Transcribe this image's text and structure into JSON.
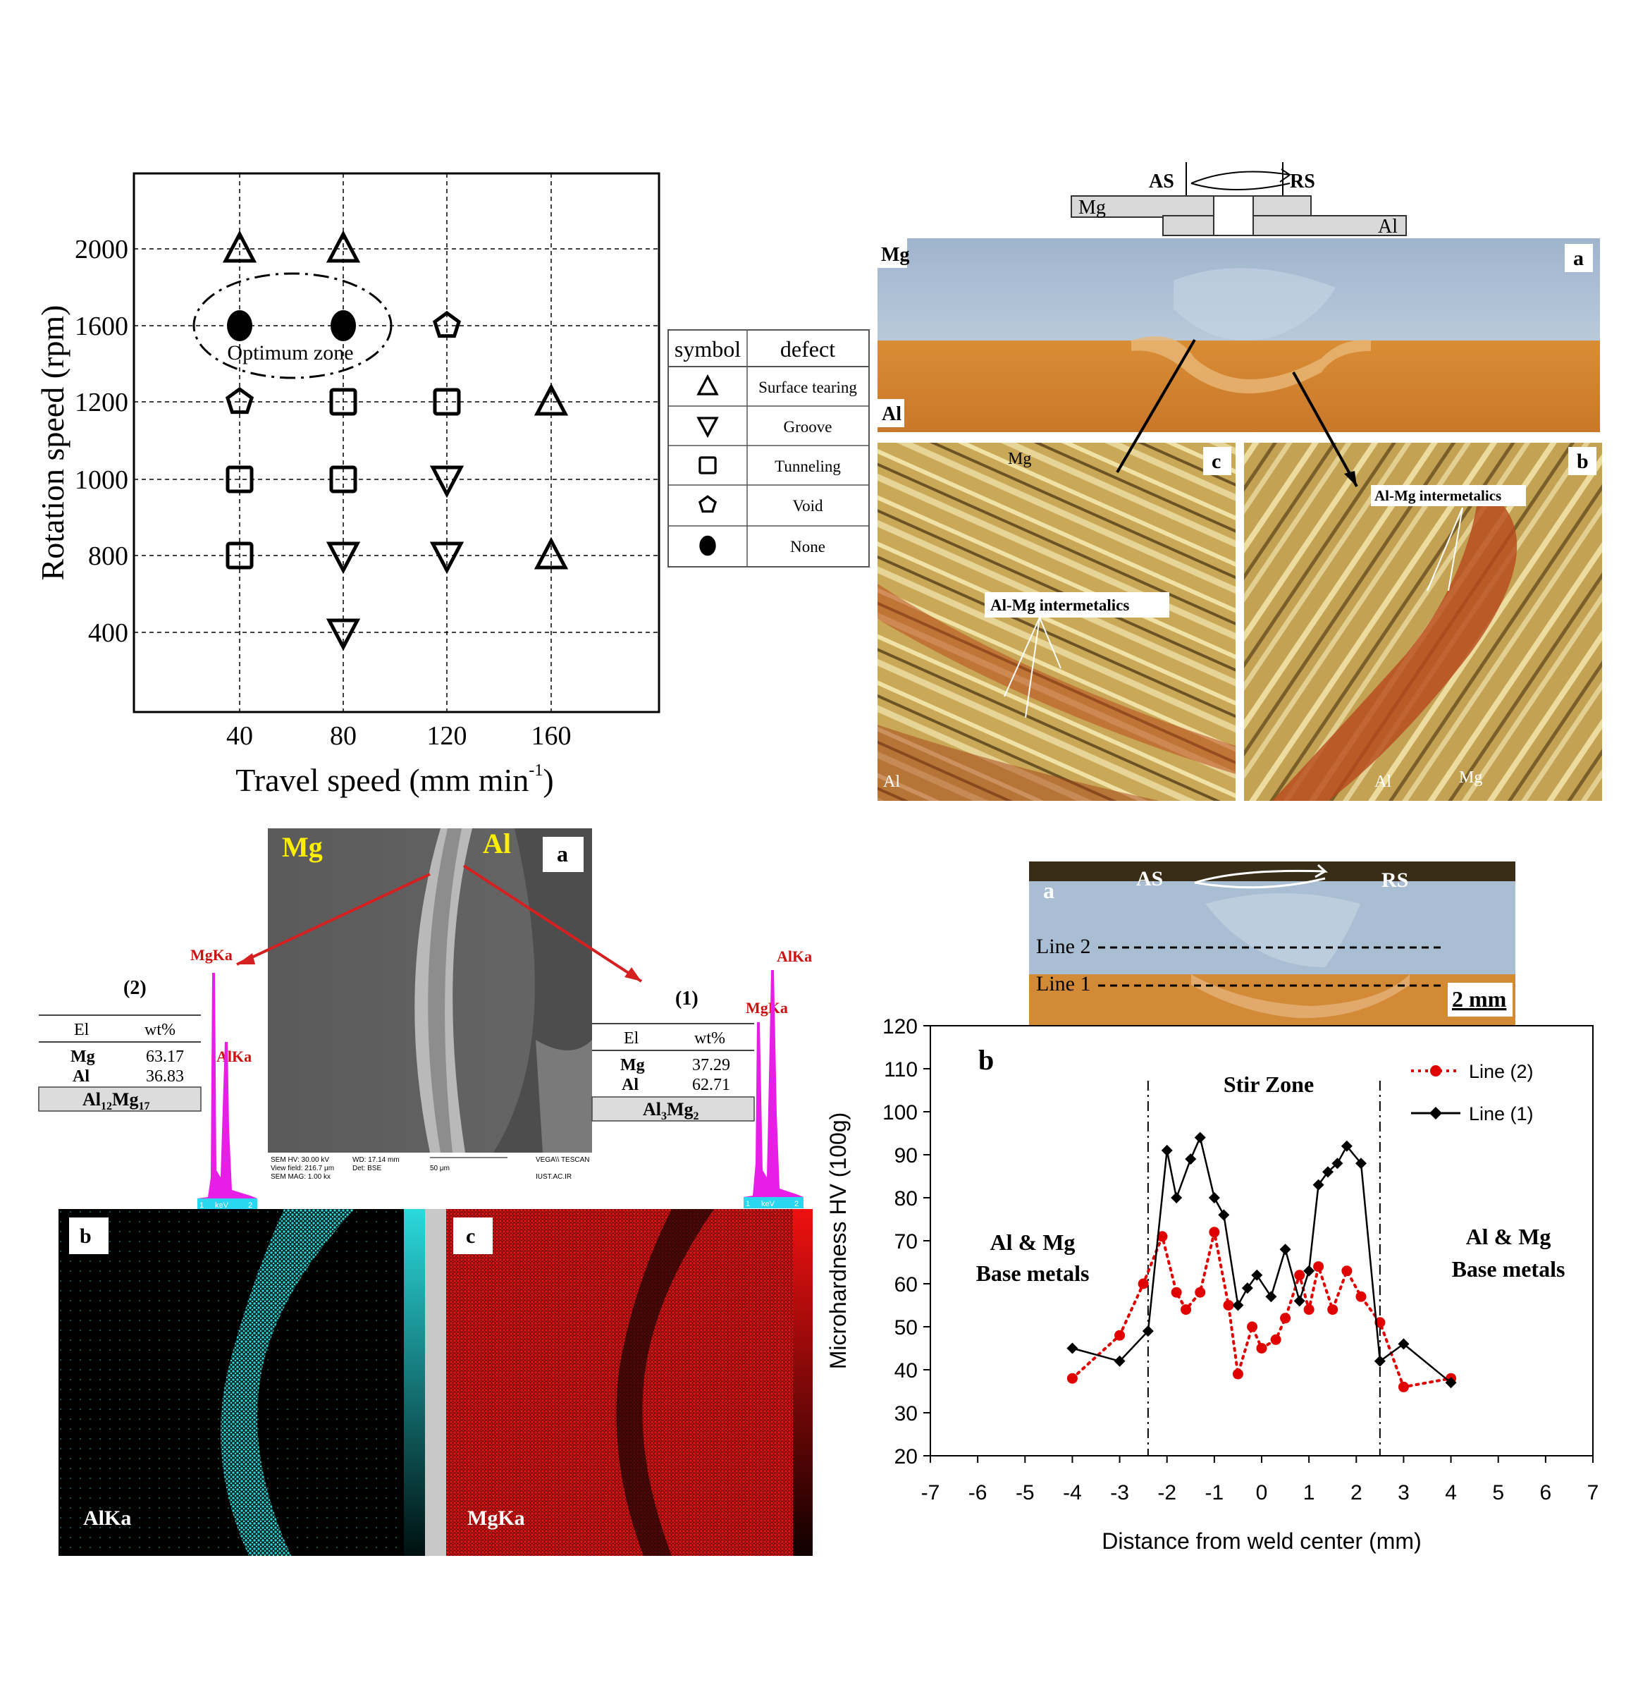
{
  "colors": {
    "mg_cross_section": "#a9bdd3",
    "al_cross_section": "#d38a36",
    "micro_gold": "#c9a857",
    "micro_red": "#b8481b",
    "edx_magenta": "#e61ee6",
    "edx_axis": "#29d7f0",
    "map_cyan": "#2fd7d8",
    "map_red": "#d51212",
    "line2_red": "#e00000",
    "line1_black": "#000000",
    "label_yellow": "#ffee00",
    "arrow_red": "#d42020"
  },
  "process_window": {
    "chart_data": {
      "type": "scatter",
      "title": "",
      "xlabel": "Travel speed (mm min",
      "xlabel_sup": "-1",
      "xlabel_close": ")",
      "ylabel": "Rotation speed (rpm)",
      "x_ticks": [
        "40",
        "80",
        "120",
        "160"
      ],
      "y_ticks": [
        "2000",
        "1600",
        "1200",
        "1000",
        "800",
        "400"
      ],
      "annotation": "Optimum zone",
      "points": [
        {
          "x": 40,
          "y": 2000,
          "defect": "Surface tearing"
        },
        {
          "x": 80,
          "y": 2000,
          "defect": "Surface tearing"
        },
        {
          "x": 40,
          "y": 1600,
          "defect": "None"
        },
        {
          "x": 80,
          "y": 1600,
          "defect": "None"
        },
        {
          "x": 120,
          "y": 1600,
          "defect": "Void"
        },
        {
          "x": 40,
          "y": 1200,
          "defect": "Void"
        },
        {
          "x": 80,
          "y": 1200,
          "defect": "Tunneling"
        },
        {
          "x": 120,
          "y": 1200,
          "defect": "Tunneling"
        },
        {
          "x": 160,
          "y": 1200,
          "defect": "Surface tearing"
        },
        {
          "x": 40,
          "y": 1000,
          "defect": "Tunneling"
        },
        {
          "x": 80,
          "y": 1000,
          "defect": "Tunneling"
        },
        {
          "x": 120,
          "y": 1000,
          "defect": "Groove"
        },
        {
          "x": 40,
          "y": 800,
          "defect": "Tunneling"
        },
        {
          "x": 80,
          "y": 800,
          "defect": "Groove"
        },
        {
          "x": 120,
          "y": 800,
          "defect": "Groove"
        },
        {
          "x": 160,
          "y": 800,
          "defect": "Surface tearing"
        },
        {
          "x": 80,
          "y": 400,
          "defect": "Groove"
        }
      ]
    },
    "legend": {
      "header_symbol": "symbol",
      "header_defect": "defect",
      "rows": [
        {
          "icon": "triangle-up-icon",
          "label": "Surface tearing"
        },
        {
          "icon": "triangle-down-icon",
          "label": "Groove"
        },
        {
          "icon": "square-icon",
          "label": "Tunneling"
        },
        {
          "icon": "pentagon-icon",
          "label": "Void"
        },
        {
          "icon": "filled-circle-icon",
          "label": "None"
        }
      ]
    }
  },
  "macro_micro": {
    "schematic": {
      "as": "AS",
      "rs": "RS",
      "mg": "Mg",
      "al": "Al"
    },
    "panel_a": {
      "letter": "a",
      "mg": "Mg",
      "al": "Al"
    },
    "panel_c": {
      "letter": "c",
      "mg": "Mg",
      "al": "Al",
      "callout": "Al-Mg intermetalics"
    },
    "panel_b": {
      "letter": "b",
      "mg": "Mg",
      "al": "Al",
      "callout": "Al-Mg intermetalics"
    }
  },
  "sem_edx": {
    "sem": {
      "letter": "a",
      "mg": "Mg",
      "al": "Al",
      "meta_left": [
        "SEM HV: 30.00 kV",
        "View field: 216.7 μm",
        "SEM MAG: 1.00 kx"
      ],
      "meta_mid": [
        "WD: 17.14 mm",
        "Det: BSE"
      ],
      "scale": "50 μm",
      "meta_right": [
        "VEGA\\\\ TESCAN",
        "IUST.AC.IR"
      ]
    },
    "point2": {
      "num": "(2)",
      "header": [
        "El",
        "wt%"
      ],
      "rows": [
        [
          "Mg",
          "63.17"
        ],
        [
          "Al",
          "36.83"
        ]
      ],
      "phase": "Al",
      "phase_sub1": "12",
      "phase_mid": "Mg",
      "phase_sub2": "17",
      "peak1": "MgKa",
      "peak2": "AlKa",
      "axis": [
        "1",
        "keV",
        "2"
      ]
    },
    "point1": {
      "num": "(1)",
      "header": [
        "El",
        "wt%"
      ],
      "rows": [
        [
          "Mg",
          "37.29"
        ],
        [
          "Al",
          "62.71"
        ]
      ],
      "phase": "Al",
      "phase_sub1": "3",
      "phase_mid": "Mg",
      "phase_sub2": "2",
      "peak1": "MgKa",
      "peak2": "AlKa",
      "axis": [
        "1",
        "keV",
        "2"
      ]
    },
    "map_b": {
      "letter": "b",
      "label": "AlKa"
    },
    "map_c": {
      "letter": "c",
      "label": "MgKa"
    }
  },
  "hardness": {
    "macro": {
      "letter": "a",
      "as": "AS",
      "rs": "RS",
      "line2": "Line 2",
      "line1": "Line 1",
      "scale": "2 mm"
    },
    "chart_data": {
      "type": "line",
      "title": "",
      "panel_letter": "b",
      "xlabel": "Distance from weld center (mm)",
      "ylabel": "Microhardness HV (100g)",
      "xlim": [
        -7,
        7
      ],
      "ylim": [
        20,
        120
      ],
      "x_ticks": [
        "-7",
        "-6",
        "-5",
        "-4",
        "-3",
        "-2",
        "-1",
        "0",
        "1",
        "2",
        "3",
        "4",
        "5",
        "6",
        "7"
      ],
      "y_ticks": [
        "20",
        "30",
        "40",
        "50",
        "60",
        "70",
        "80",
        "90",
        "100",
        "110",
        "120"
      ],
      "zone_boundaries": [
        -2.4,
        2.5
      ],
      "annotations": {
        "stir_zone": "Stir Zone",
        "left_1": "Al & Mg",
        "left_2": "Base metals",
        "right_1": "Al & Mg",
        "right_2": "Base metals"
      },
      "series": [
        {
          "name": "Line (2)",
          "style": "dotted-circle-red",
          "x": [
            -4,
            -3,
            -2.5,
            -2.1,
            -1.8,
            -1.6,
            -1.3,
            -1.0,
            -0.7,
            -0.5,
            -0.2,
            0,
            0.3,
            0.5,
            0.8,
            1.0,
            1.2,
            1.5,
            1.8,
            2.1,
            2.5,
            3.0,
            4.0
          ],
          "y": [
            38,
            48,
            60,
            71,
            58,
            54,
            58,
            72,
            55,
            39,
            50,
            45,
            47,
            52,
            62,
            54,
            64,
            54,
            63,
            57,
            51,
            36,
            38
          ]
        },
        {
          "name": "Line (1)",
          "style": "solid-diamond-black",
          "x": [
            -4,
            -3,
            -2.4,
            -2.0,
            -1.8,
            -1.5,
            -1.3,
            -1.0,
            -0.8,
            -0.5,
            -0.3,
            -0.1,
            0.2,
            0.5,
            0.8,
            1.0,
            1.2,
            1.4,
            1.6,
            1.8,
            2.1,
            2.5,
            3.0,
            4.0
          ],
          "y": [
            45,
            42,
            49,
            91,
            80,
            89,
            94,
            80,
            76,
            55,
            59,
            62,
            57,
            68,
            56,
            63,
            83,
            86,
            88,
            92,
            88,
            42,
            46,
            37
          ]
        }
      ]
    }
  }
}
